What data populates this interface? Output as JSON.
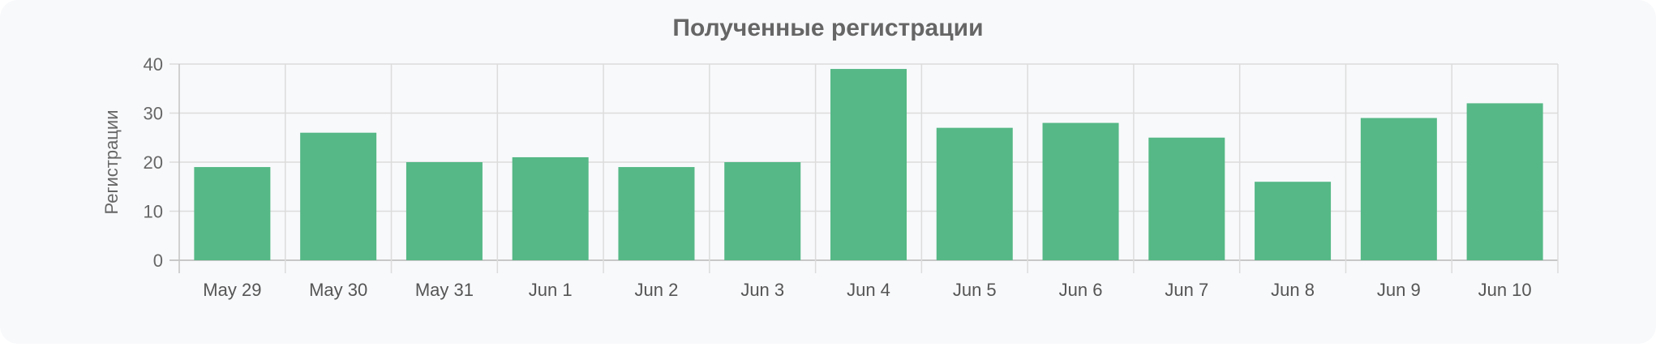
{
  "chart_data": {
    "type": "bar",
    "title": "Полученные регистрации",
    "xlabel": "",
    "ylabel": "Регистрации",
    "categories": [
      "May 29",
      "May 30",
      "May 31",
      "Jun 1",
      "Jun 2",
      "Jun 3",
      "Jun 4",
      "Jun 5",
      "Jun 6",
      "Jun 7",
      "Jun 8",
      "Jun 9",
      "Jun 10"
    ],
    "values": [
      19,
      26,
      20,
      21,
      19,
      20,
      39,
      27,
      28,
      25,
      16,
      29,
      32
    ],
    "ylim": [
      0,
      40
    ],
    "yticks": [
      0,
      10,
      20,
      30,
      40
    ],
    "grid": true,
    "legend": "none",
    "bar_color": "#55b886"
  }
}
